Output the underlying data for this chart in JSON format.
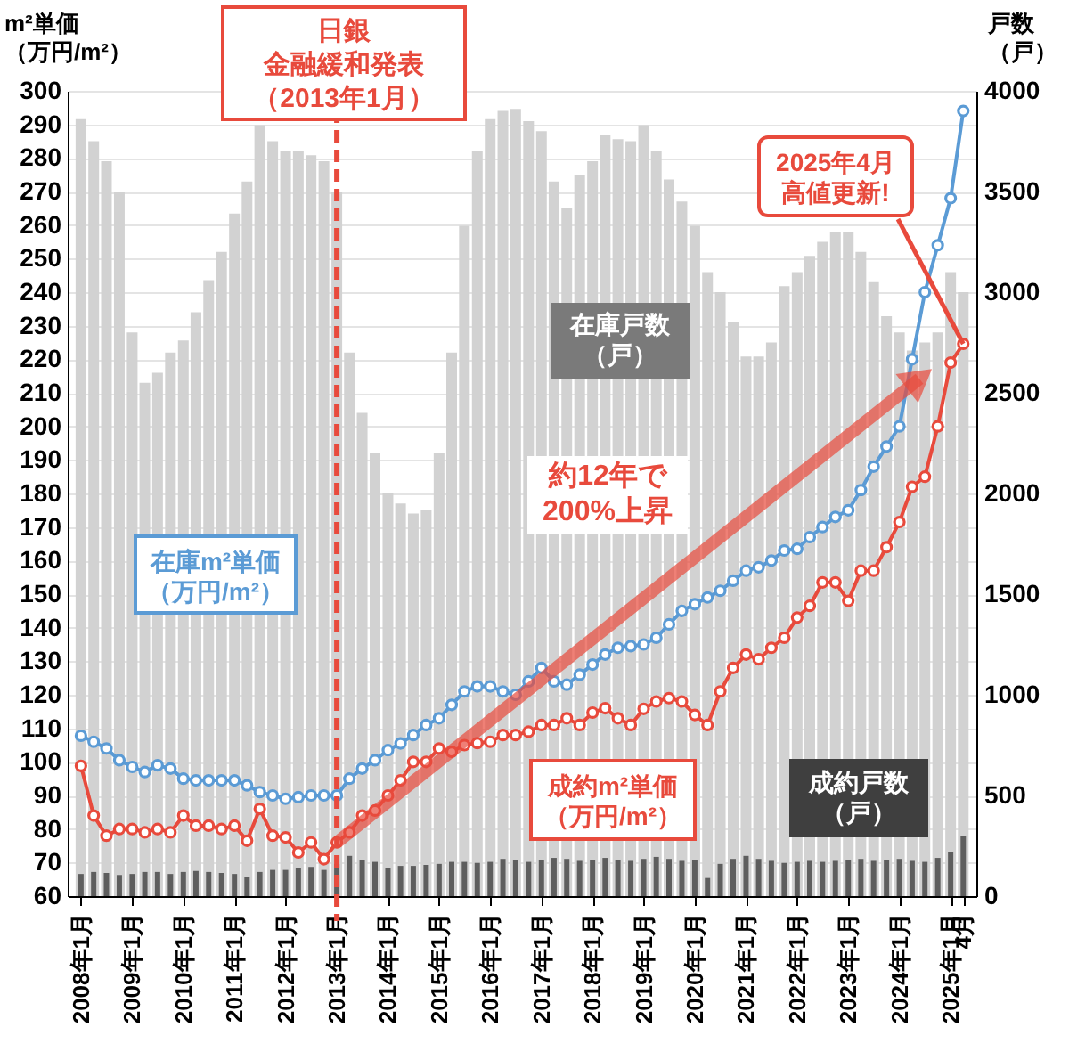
{
  "chart_data": {
    "type": "line",
    "ylabel": "m²単価（万円/m²）",
    "y2label": "戸数（戸）",
    "x": [
      "2008-01",
      "2008-04",
      "2008-07",
      "2008-10",
      "2009-01",
      "2009-04",
      "2009-07",
      "2009-10",
      "2010-01",
      "2010-04",
      "2010-07",
      "2010-10",
      "2011-01",
      "2011-04",
      "2011-07",
      "2011-10",
      "2012-01",
      "2012-04",
      "2012-07",
      "2012-10",
      "2013-01",
      "2013-04",
      "2013-07",
      "2013-10",
      "2014-01",
      "2014-04",
      "2014-07",
      "2014-10",
      "2015-01",
      "2015-04",
      "2015-07",
      "2015-10",
      "2016-01",
      "2016-04",
      "2016-07",
      "2016-10",
      "2017-01",
      "2017-04",
      "2017-07",
      "2017-10",
      "2018-01",
      "2018-04",
      "2018-07",
      "2018-10",
      "2019-01",
      "2019-04",
      "2019-07",
      "2019-10",
      "2020-01",
      "2020-04",
      "2020-07",
      "2020-10",
      "2021-01",
      "2021-04",
      "2021-07",
      "2021-10",
      "2022-01",
      "2022-04",
      "2022-07",
      "2022-10",
      "2023-01",
      "2023-04",
      "2023-07",
      "2023-10",
      "2024-01",
      "2024-04",
      "2024-07",
      "2024-10",
      "2025-01",
      "2025-04"
    ],
    "series": [
      {
        "name": "在庫戸数（戸）",
        "type": "bar",
        "axis": "y2",
        "color": "#d2d2d2",
        "values": [
          3860,
          3750,
          3650,
          3500,
          2800,
          2550,
          2600,
          2700,
          2760,
          2900,
          3060,
          3200,
          3390,
          3550,
          3830,
          3750,
          3700,
          3700,
          3680,
          3650,
          3500,
          2700,
          2400,
          2200,
          2000,
          1950,
          1900,
          1920,
          2200,
          2700,
          3330,
          3700,
          3860,
          3900,
          3910,
          3850,
          3800,
          3550,
          3420,
          3580,
          3650,
          3780,
          3760,
          3750,
          3830,
          3700,
          3560,
          3450,
          3330,
          3100,
          3000,
          2850,
          2680,
          2680,
          2750,
          3030,
          3100,
          3180,
          3250,
          3300,
          3300,
          3200,
          3050,
          2880,
          2800,
          2710,
          2750,
          2800,
          3100,
          3000
        ]
      },
      {
        "name": "成約戸数（戸）",
        "type": "bar",
        "axis": "y2",
        "color": "#5e5e5e",
        "values": [
          110,
          120,
          115,
          105,
          110,
          120,
          120,
          110,
          120,
          125,
          120,
          115,
          110,
          95,
          120,
          130,
          130,
          140,
          145,
          130,
          160,
          200,
          180,
          170,
          140,
          150,
          150,
          155,
          160,
          170,
          170,
          165,
          170,
          185,
          180,
          170,
          180,
          190,
          185,
          175,
          180,
          190,
          180,
          175,
          185,
          195,
          185,
          175,
          180,
          90,
          160,
          185,
          200,
          185,
          175,
          165,
          170,
          175,
          170,
          175,
          180,
          185,
          175,
          180,
          185,
          175,
          170,
          190,
          220,
          300
        ]
      },
      {
        "name": "在庫m²単価（万円/m²）",
        "color": "#5b9bd5",
        "values": [
          107.8,
          106,
          104,
          100.5,
          98.5,
          97,
          99,
          98,
          95,
          94.5,
          94.5,
          94.5,
          94.5,
          93,
          91,
          90,
          89,
          89.5,
          90,
          90,
          90,
          95,
          98,
          100.5,
          103.5,
          105.5,
          108,
          111,
          113,
          117,
          121,
          122.5,
          122.5,
          121,
          120,
          124,
          128,
          124,
          123,
          126,
          129,
          132,
          134,
          134.5,
          135,
          137,
          141,
          145,
          147,
          149,
          151,
          154,
          157,
          158,
          160,
          163,
          163.5,
          167,
          170,
          173,
          175,
          181,
          188,
          194,
          200,
          220,
          240,
          254,
          268,
          294
        ]
      },
      {
        "name": "成約m²単価（万円/m²）",
        "color": "#e84a3c",
        "values": [
          98.8,
          84,
          78,
          80,
          80,
          79,
          80,
          79,
          84,
          81,
          81,
          80,
          81,
          76.5,
          86,
          78,
          77.5,
          73,
          76,
          71,
          76,
          79,
          84,
          85.5,
          90,
          94.5,
          100,
          100,
          104,
          103,
          105,
          105.6,
          106,
          108,
          108,
          109,
          111,
          111,
          113,
          111,
          114.7,
          116,
          113,
          111,
          115.8,
          118,
          119,
          118,
          114,
          111,
          121,
          128,
          132,
          130.6,
          134,
          137,
          143,
          146.5,
          153.5,
          153.5,
          148,
          157,
          157,
          164,
          171.5,
          182,
          185,
          200,
          219,
          224.6
        ]
      }
    ],
    "xlim": [
      "2007-12",
      "2025-05"
    ],
    "xticks": [
      {
        "value": "2008-01",
        "label": "2008年1月"
      },
      {
        "value": "2009-01",
        "label": "2009年1月"
      },
      {
        "value": "2010-01",
        "label": "2010年1月"
      },
      {
        "value": "2011-01",
        "label": "2011年1月"
      },
      {
        "value": "2012-01",
        "label": "2012年1月"
      },
      {
        "value": "2013-01",
        "label": "2013年1月"
      },
      {
        "value": "2014-01",
        "label": "2014年1月"
      },
      {
        "value": "2015-01",
        "label": "2015年1月"
      },
      {
        "value": "2016-01",
        "label": "2016年1月"
      },
      {
        "value": "2017-01",
        "label": "2017年1月"
      },
      {
        "value": "2018-01",
        "label": "2018年1月"
      },
      {
        "value": "2019-01",
        "label": "2019年1月"
      },
      {
        "value": "2020-01",
        "label": "2020年1月"
      },
      {
        "value": "2021-01",
        "label": "2021年1月"
      },
      {
        "value": "2022-01",
        "label": "2022年1月"
      },
      {
        "value": "2023-01",
        "label": "2023年1月"
      },
      {
        "value": "2024-01",
        "label": "2024年1月"
      },
      {
        "value": "2025-01",
        "label": "2025年1月"
      },
      {
        "value": "2025-04",
        "label": "4月"
      }
    ],
    "ylim": [
      60,
      300
    ],
    "yticks": [
      60,
      70,
      80,
      90,
      100,
      110,
      120,
      130,
      140,
      150,
      160,
      170,
      180,
      190,
      200,
      210,
      220,
      230,
      240,
      250,
      260,
      270,
      280,
      290,
      300
    ],
    "y2lim": [
      0,
      4000
    ],
    "y2ticks": [
      0,
      500,
      1000,
      1500,
      2000,
      2500,
      3000,
      3500,
      4000
    ],
    "grid": "y",
    "marker": "circle",
    "line_style": "solid",
    "ref_lines": [
      {
        "axis": "x",
        "value": "2013-01",
        "label": "日銀金融緩和発表（2013年1月）",
        "color": "#e84a3c",
        "line_style": "dashed"
      }
    ],
    "annotations": [
      "約12年で200%上昇",
      {
        "text": "2025年4月高値更新!",
        "x": "2025-04",
        "y": 224.6
      }
    ]
  }
}
